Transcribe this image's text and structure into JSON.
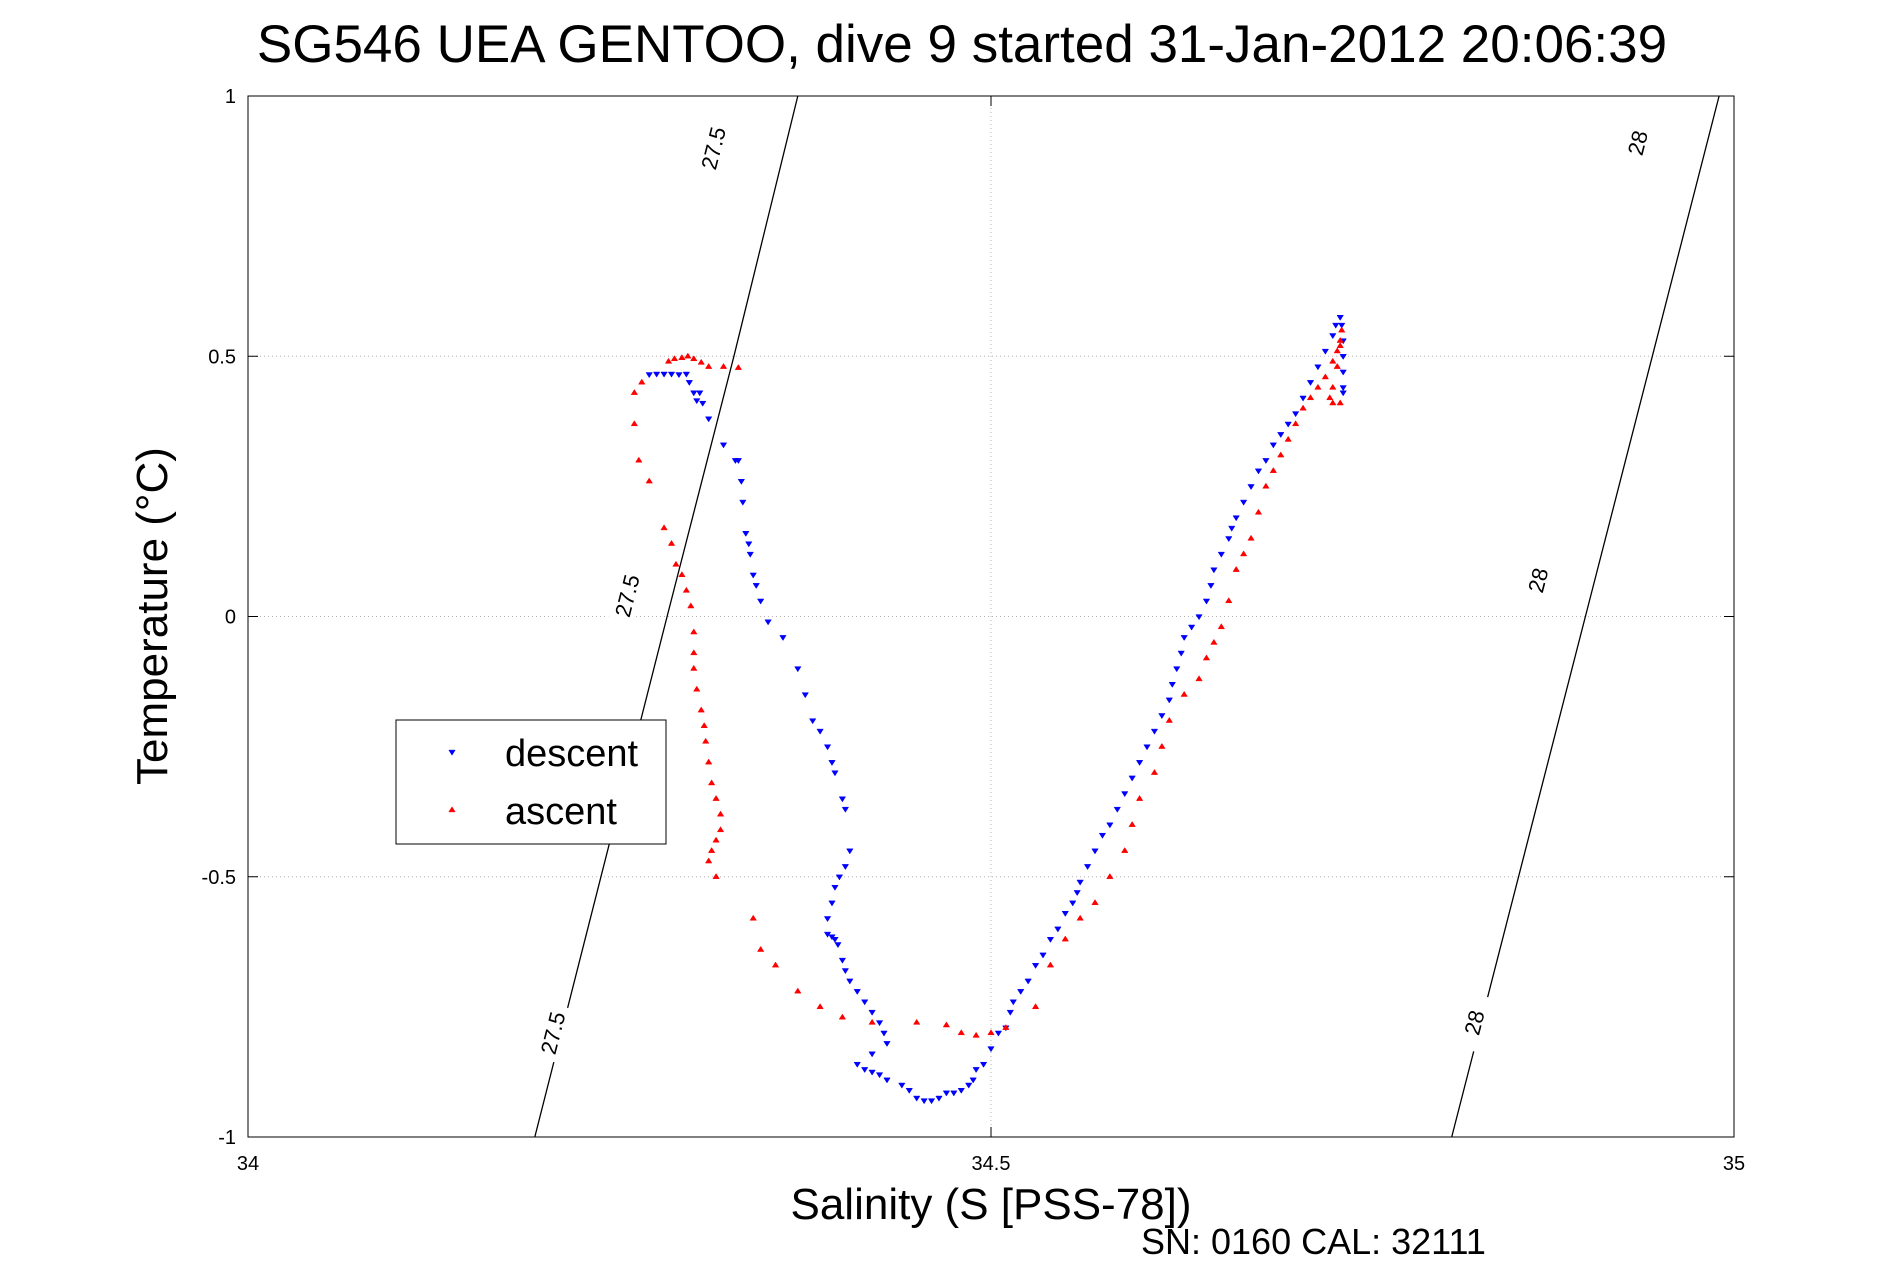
{
  "chart_data": {
    "type": "scatter",
    "title": "SG546 UEA GENTOO, dive 9 started 31-Jan-2012 20:06:39",
    "xlabel": "Salinity (S [PSS-78])",
    "ylabel": "Temperature (°C)",
    "xlim": [
      34,
      35
    ],
    "ylim": [
      -1,
      1
    ],
    "xticks": [
      34,
      34.5,
      35
    ],
    "xtick_labels": [
      "34",
      "34.5",
      "35"
    ],
    "yticks": [
      -1,
      -0.5,
      0,
      0.5,
      1
    ],
    "ytick_labels": [
      "-1",
      "-0.5",
      "0",
      "0.5",
      "1"
    ],
    "grid": true,
    "legend_position": "left",
    "footer": "SN: 0160  CAL: 32111",
    "contours": [
      {
        "label": "27.5",
        "points": [
          [
            34.193,
            -1.0
          ],
          [
            34.282,
            0.0
          ],
          [
            34.327,
            0.5
          ],
          [
            34.37,
            1.0
          ]
        ],
        "label_points": [
          [
            34.205,
            -0.8
          ],
          [
            34.255,
            0.04
          ],
          [
            34.313,
            0.9
          ]
        ]
      },
      {
        "label": "28",
        "points": [
          [
            34.81,
            -1.0
          ],
          [
            34.9,
            0.0
          ],
          [
            34.945,
            0.5
          ],
          [
            34.99,
            1.0
          ]
        ],
        "label_points": [
          [
            34.825,
            -0.78
          ],
          [
            34.868,
            0.07
          ],
          [
            34.935,
            0.91
          ]
        ]
      }
    ],
    "series": [
      {
        "name": "descent",
        "color": "#0000ff",
        "marker": "triangle-down",
        "points": [
          [
            34.27,
            0.465
          ],
          [
            34.275,
            0.466
          ],
          [
            34.28,
            0.466
          ],
          [
            34.285,
            0.466
          ],
          [
            34.29,
            0.465
          ],
          [
            34.295,
            0.466
          ],
          [
            34.297,
            0.45
          ],
          [
            34.3,
            0.43
          ],
          [
            34.302,
            0.415
          ],
          [
            34.304,
            0.43
          ],
          [
            34.306,
            0.41
          ],
          [
            34.31,
            0.38
          ],
          [
            34.32,
            0.33
          ],
          [
            34.328,
            0.3
          ],
          [
            34.33,
            0.3
          ],
          [
            34.332,
            0.26
          ],
          [
            34.333,
            0.22
          ],
          [
            34.335,
            0.16
          ],
          [
            34.337,
            0.14
          ],
          [
            34.338,
            0.12
          ],
          [
            34.34,
            0.08
          ],
          [
            34.342,
            0.06
          ],
          [
            34.345,
            0.03
          ],
          [
            34.35,
            -0.01
          ],
          [
            34.36,
            -0.04
          ],
          [
            34.37,
            -0.1
          ],
          [
            34.375,
            -0.15
          ],
          [
            34.38,
            -0.2
          ],
          [
            34.385,
            -0.22
          ],
          [
            34.39,
            -0.25
          ],
          [
            34.393,
            -0.28
          ],
          [
            34.395,
            -0.3
          ],
          [
            34.4,
            -0.35
          ],
          [
            34.402,
            -0.37
          ],
          [
            34.405,
            -0.45
          ],
          [
            34.402,
            -0.48
          ],
          [
            34.398,
            -0.5
          ],
          [
            34.395,
            -0.52
          ],
          [
            34.393,
            -0.55
          ],
          [
            34.39,
            -0.58
          ],
          [
            34.39,
            -0.61
          ],
          [
            34.393,
            -0.615
          ],
          [
            34.395,
            -0.62
          ],
          [
            34.397,
            -0.63
          ],
          [
            34.4,
            -0.66
          ],
          [
            34.402,
            -0.68
          ],
          [
            34.405,
            -0.7
          ],
          [
            34.41,
            -0.72
          ],
          [
            34.415,
            -0.74
          ],
          [
            34.42,
            -0.76
          ],
          [
            34.425,
            -0.78
          ],
          [
            34.428,
            -0.8
          ],
          [
            34.43,
            -0.82
          ],
          [
            34.42,
            -0.84
          ],
          [
            34.41,
            -0.86
          ],
          [
            34.415,
            -0.87
          ],
          [
            34.42,
            -0.875
          ],
          [
            34.425,
            -0.88
          ],
          [
            34.43,
            -0.89
          ],
          [
            34.44,
            -0.9
          ],
          [
            34.445,
            -0.91
          ],
          [
            34.45,
            -0.925
          ],
          [
            34.455,
            -0.93
          ],
          [
            34.46,
            -0.93
          ],
          [
            34.465,
            -0.925
          ],
          [
            34.47,
            -0.915
          ],
          [
            34.475,
            -0.915
          ],
          [
            34.48,
            -0.91
          ],
          [
            34.485,
            -0.9
          ],
          [
            34.488,
            -0.89
          ],
          [
            34.49,
            -0.87
          ],
          [
            34.495,
            -0.86
          ],
          [
            34.5,
            -0.83
          ],
          [
            34.505,
            -0.8
          ],
          [
            34.51,
            -0.79
          ],
          [
            34.513,
            -0.76
          ],
          [
            34.515,
            -0.74
          ],
          [
            34.52,
            -0.72
          ],
          [
            34.525,
            -0.7
          ],
          [
            34.53,
            -0.67
          ],
          [
            34.535,
            -0.65
          ],
          [
            34.54,
            -0.62
          ],
          [
            34.545,
            -0.6
          ],
          [
            34.55,
            -0.57
          ],
          [
            34.555,
            -0.55
          ],
          [
            34.558,
            -0.53
          ],
          [
            34.56,
            -0.51
          ],
          [
            34.565,
            -0.48
          ],
          [
            34.57,
            -0.45
          ],
          [
            34.575,
            -0.42
          ],
          [
            34.58,
            -0.4
          ],
          [
            34.585,
            -0.37
          ],
          [
            34.59,
            -0.34
          ],
          [
            34.595,
            -0.31
          ],
          [
            34.6,
            -0.28
          ],
          [
            34.605,
            -0.25
          ],
          [
            34.61,
            -0.22
          ],
          [
            34.615,
            -0.19
          ],
          [
            34.62,
            -0.16
          ],
          [
            34.622,
            -0.13
          ],
          [
            34.625,
            -0.1
          ],
          [
            34.628,
            -0.07
          ],
          [
            34.63,
            -0.04
          ],
          [
            34.635,
            -0.02
          ],
          [
            34.64,
            0.0
          ],
          [
            34.645,
            0.03
          ],
          [
            34.648,
            0.06
          ],
          [
            34.65,
            0.09
          ],
          [
            34.655,
            0.12
          ],
          [
            34.66,
            0.15
          ],
          [
            34.662,
            0.17
          ],
          [
            34.665,
            0.19
          ],
          [
            34.67,
            0.22
          ],
          [
            34.675,
            0.25
          ],
          [
            34.68,
            0.28
          ],
          [
            34.685,
            0.3
          ],
          [
            34.69,
            0.33
          ],
          [
            34.695,
            0.35
          ],
          [
            34.7,
            0.37
          ],
          [
            34.705,
            0.39
          ],
          [
            34.71,
            0.42
          ],
          [
            34.715,
            0.45
          ],
          [
            34.72,
            0.48
          ],
          [
            34.725,
            0.51
          ],
          [
            34.73,
            0.54
          ],
          [
            34.732,
            0.56
          ],
          [
            34.735,
            0.575
          ],
          [
            34.736,
            0.56
          ],
          [
            34.737,
            0.53
          ],
          [
            34.737,
            0.5
          ],
          [
            34.737,
            0.47
          ],
          [
            34.737,
            0.44
          ],
          [
            34.737,
            0.43
          ]
        ]
      },
      {
        "name": "ascent",
        "color": "#ff0000",
        "marker": "triangle-up",
        "points": [
          [
            34.283,
            0.49
          ],
          [
            34.287,
            0.495
          ],
          [
            34.292,
            0.497
          ],
          [
            34.296,
            0.5
          ],
          [
            34.3,
            0.495
          ],
          [
            34.305,
            0.488
          ],
          [
            34.31,
            0.48
          ],
          [
            34.32,
            0.48
          ],
          [
            34.33,
            0.478
          ],
          [
            34.265,
            0.45
          ],
          [
            34.26,
            0.43
          ],
          [
            34.26,
            0.37
          ],
          [
            34.263,
            0.3
          ],
          [
            34.27,
            0.26
          ],
          [
            34.28,
            0.17
          ],
          [
            34.285,
            0.14
          ],
          [
            34.288,
            0.1
          ],
          [
            34.292,
            0.08
          ],
          [
            34.295,
            0.05
          ],
          [
            34.298,
            0.02
          ],
          [
            34.3,
            -0.03
          ],
          [
            34.3,
            -0.07
          ],
          [
            34.3,
            -0.1
          ],
          [
            34.302,
            -0.14
          ],
          [
            34.305,
            -0.18
          ],
          [
            34.307,
            -0.21
          ],
          [
            34.308,
            -0.24
          ],
          [
            34.31,
            -0.28
          ],
          [
            34.312,
            -0.32
          ],
          [
            34.315,
            -0.35
          ],
          [
            34.318,
            -0.38
          ],
          [
            34.318,
            -0.41
          ],
          [
            34.315,
            -0.43
          ],
          [
            34.312,
            -0.45
          ],
          [
            34.31,
            -0.47
          ],
          [
            34.315,
            -0.5
          ],
          [
            34.34,
            -0.58
          ],
          [
            34.345,
            -0.64
          ],
          [
            34.355,
            -0.67
          ],
          [
            34.37,
            -0.72
          ],
          [
            34.385,
            -0.75
          ],
          [
            34.4,
            -0.77
          ],
          [
            34.42,
            -0.78
          ],
          [
            34.45,
            -0.78
          ],
          [
            34.47,
            -0.785
          ],
          [
            34.48,
            -0.8
          ],
          [
            34.49,
            -0.805
          ],
          [
            34.5,
            -0.8
          ],
          [
            34.51,
            -0.79
          ],
          [
            34.53,
            -0.75
          ],
          [
            34.54,
            -0.67
          ],
          [
            34.55,
            -0.62
          ],
          [
            34.56,
            -0.58
          ],
          [
            34.57,
            -0.55
          ],
          [
            34.58,
            -0.5
          ],
          [
            34.59,
            -0.45
          ],
          [
            34.595,
            -0.4
          ],
          [
            34.6,
            -0.35
          ],
          [
            34.61,
            -0.3
          ],
          [
            34.615,
            -0.25
          ],
          [
            34.62,
            -0.2
          ],
          [
            34.63,
            -0.15
          ],
          [
            34.64,
            -0.12
          ],
          [
            34.645,
            -0.08
          ],
          [
            34.65,
            -0.05
          ],
          [
            34.655,
            -0.02
          ],
          [
            34.66,
            0.03
          ],
          [
            34.665,
            0.09
          ],
          [
            34.67,
            0.12
          ],
          [
            34.675,
            0.15
          ],
          [
            34.68,
            0.2
          ],
          [
            34.685,
            0.25
          ],
          [
            34.69,
            0.28
          ],
          [
            34.695,
            0.31
          ],
          [
            34.7,
            0.34
          ],
          [
            34.705,
            0.37
          ],
          [
            34.71,
            0.4
          ],
          [
            34.715,
            0.42
          ],
          [
            34.72,
            0.44
          ],
          [
            34.725,
            0.46
          ],
          [
            34.73,
            0.49
          ],
          [
            34.733,
            0.51
          ],
          [
            34.735,
            0.53
          ],
          [
            34.736,
            0.55
          ],
          [
            34.735,
            0.52
          ],
          [
            34.733,
            0.48
          ],
          [
            34.73,
            0.44
          ],
          [
            34.728,
            0.42
          ],
          [
            34.73,
            0.41
          ],
          [
            34.735,
            0.41
          ]
        ]
      }
    ]
  }
}
